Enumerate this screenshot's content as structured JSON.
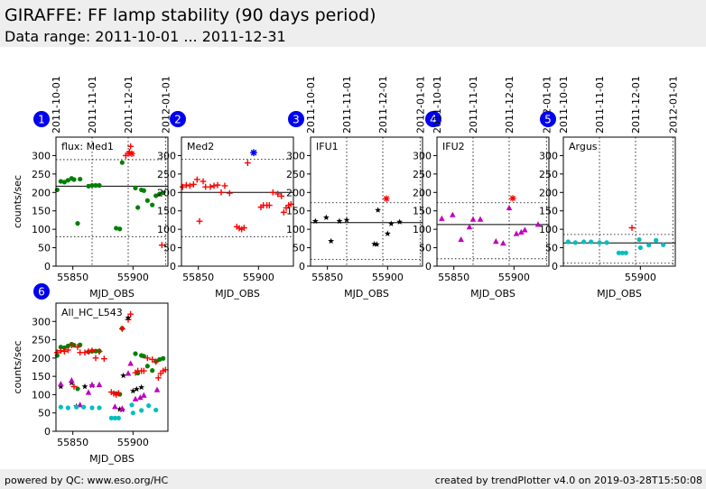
{
  "header": {
    "title": "GIRAFFE: FF lamp stability (90 days period)",
    "subtitle": "Data range: 2011-10-01 ... 2011-12-31"
  },
  "footer": {
    "left": "powered by QC: www.eso.org/HC",
    "right": "created by trendPlotter v4.0 on 2019-03-28T15:50:08"
  },
  "chart_data": [
    {
      "type": "scatter",
      "panel_number": "1",
      "title": "flux: Med1",
      "xlabel": "MJD_OBS",
      "ylabel": "counts/sec",
      "xlim": [
        55836,
        55929
      ],
      "ylim": [
        0,
        350
      ],
      "xticks": [
        55850,
        55900
      ],
      "yticks": [
        0,
        50,
        100,
        150,
        200,
        250,
        300
      ],
      "date_marks": [
        {
          "label": "2011-10-01",
          "x": 55835
        },
        {
          "label": "2011-11-01",
          "x": 55866
        },
        {
          "label": "2011-12-01",
          "x": 55896
        },
        {
          "label": "2012-01-01",
          "x": 55927
        }
      ],
      "mean": 217,
      "band": [
        80,
        289
      ],
      "series": [
        {
          "marker": "circle",
          "color": "#008000",
          "x": [
            55837,
            55840,
            55843,
            55846,
            55849,
            55851,
            55854,
            55856,
            55863,
            55866,
            55869,
            55872,
            55886,
            55889,
            55891,
            55902,
            55904,
            55907,
            55909,
            55912,
            55916,
            55919,
            55922,
            55925
          ],
          "y": [
            207,
            230,
            228,
            233,
            238,
            235,
            116,
            236,
            217,
            219,
            219,
            219,
            103,
            101,
            281,
            212,
            159,
            207,
            205,
            178,
            166,
            191,
            196,
            199
          ]
        },
        {
          "marker": "plus",
          "color": "#ff0000",
          "x": [
            55894,
            55896,
            55897,
            55898,
            55924
          ],
          "y": [
            300,
            305,
            310,
            325,
            57
          ]
        },
        {
          "marker": "cross",
          "color": "#ff0000",
          "x": [
            55899
          ],
          "y": [
            305
          ]
        }
      ]
    },
    {
      "type": "scatter",
      "panel_number": "2",
      "title": "Med2",
      "xlabel": "MJD_OBS",
      "ylabel": "",
      "xlim": [
        55836,
        55929
      ],
      "ylim": [
        0,
        350
      ],
      "xticks": [
        55850,
        55900
      ],
      "yticks": [
        0,
        50,
        100,
        150,
        200,
        250,
        300
      ],
      "date_marks": [],
      "mean": 200,
      "band": [
        80,
        290
      ],
      "series": [
        {
          "marker": "plus",
          "color": "#ff0000",
          "x": [
            55837,
            55840,
            55843,
            55846,
            55849,
            55851,
            55854,
            55856,
            55860,
            55863,
            55866,
            55869,
            55872,
            55876,
            55882,
            55884,
            55886,
            55888,
            55891,
            55902,
            55904,
            55907,
            55909,
            55912,
            55916,
            55919,
            55921,
            55923,
            55925,
            55927
          ],
          "y": [
            215,
            220,
            218,
            222,
            235,
            122,
            230,
            215,
            215,
            218,
            220,
            200,
            218,
            198,
            107,
            103,
            100,
            104,
            280,
            160,
            165,
            165,
            165,
            200,
            196,
            190,
            146,
            158,
            165,
            168
          ]
        },
        {
          "marker": "asterisk",
          "color": "#0000ff",
          "x": [
            55896
          ],
          "y": [
            308
          ]
        }
      ]
    },
    {
      "type": "scatter",
      "panel_number": "3",
      "title": "IFU1",
      "xlabel": "MJD_OBS",
      "ylabel": "",
      "xlim": [
        55836,
        55929
      ],
      "ylim": [
        0,
        350
      ],
      "xticks": [
        55850,
        55900
      ],
      "yticks": [
        0,
        50,
        100,
        150,
        200,
        250,
        300
      ],
      "date_marks": [
        {
          "label": "2011-10-01",
          "x": 55835
        },
        {
          "label": "2011-11-01",
          "x": 55866
        },
        {
          "label": "2011-12-01",
          "x": 55896
        },
        {
          "label": "2012-01-01",
          "x": 55927
        }
      ],
      "mean": 118,
      "band": [
        18,
        172
      ],
      "series": [
        {
          "marker": "star",
          "color": "#000000",
          "x": [
            55840,
            55849,
            55853,
            55860,
            55866,
            55889,
            55891,
            55892,
            55900,
            55903,
            55910
          ],
          "y": [
            122,
            132,
            68,
            122,
            125,
            60,
            59,
            152,
            88,
            115,
            120
          ]
        },
        {
          "marker": "cross",
          "color": "#ff0000",
          "x": [
            55899
          ],
          "y": [
            183
          ]
        }
      ]
    },
    {
      "type": "scatter",
      "panel_number": "4",
      "title": "IFU2",
      "xlabel": "MJD_OBS",
      "ylabel": "",
      "xlim": [
        55836,
        55929
      ],
      "ylim": [
        0,
        350
      ],
      "xticks": [
        55850,
        55900
      ],
      "yticks": [
        0,
        50,
        100,
        150,
        200,
        250,
        300
      ],
      "date_marks": [
        {
          "label": "2011-10-01",
          "x": 55835
        },
        {
          "label": "2011-11-01",
          "x": 55866
        },
        {
          "label": "2011-12-01",
          "x": 55896
        },
        {
          "label": "2012-01-01",
          "x": 55927
        }
      ],
      "mean": 113,
      "band": [
        20,
        172
      ],
      "series": [
        {
          "marker": "triangle",
          "color": "#bf00bf",
          "x": [
            55840,
            55849,
            55856,
            55863,
            55866,
            55872,
            55885,
            55891,
            55896,
            55902,
            55906,
            55909,
            55920
          ],
          "y": [
            129,
            139,
            72,
            106,
            127,
            127,
            67,
            62,
            158,
            88,
            92,
            98,
            113
          ]
        },
        {
          "marker": "cross",
          "color": "#ff0000",
          "x": [
            55899
          ],
          "y": [
            184
          ]
        }
      ]
    },
    {
      "type": "scatter",
      "panel_number": "5",
      "title": "Argus",
      "xlabel": "MJD_OBS",
      "ylabel": "",
      "xlim": [
        55836,
        55929
      ],
      "ylim": [
        0,
        350
      ],
      "xticks": [
        55900
      ],
      "yticks": [
        0,
        50,
        100,
        150,
        200,
        250,
        300
      ],
      "date_marks": [
        {
          "label": "2011-10-01",
          "x": 55835
        },
        {
          "label": "2011-11-01",
          "x": 55866
        },
        {
          "label": "2011-12-01",
          "x": 55896
        },
        {
          "label": "2012-01-01",
          "x": 55927
        }
      ],
      "mean": 63,
      "band": [
        8,
        86
      ],
      "series": [
        {
          "marker": "circle",
          "color": "#00bfbf",
          "x": [
            55840,
            55846,
            55853,
            55859,
            55866,
            55872,
            55882,
            55885,
            55888,
            55899,
            55900,
            55907,
            55913,
            55919
          ],
          "y": [
            66,
            64,
            66,
            66,
            64,
            64,
            36,
            36,
            36,
            72,
            50,
            57,
            70,
            58
          ]
        },
        {
          "marker": "plus",
          "color": "#ff0000",
          "x": [
            55893
          ],
          "y": [
            104
          ]
        }
      ]
    },
    {
      "type": "scatter",
      "panel_number": "6",
      "title": "All_HC_L543",
      "xlabel": "MJD_OBS",
      "ylabel": "counts/sec",
      "xlim": [
        55836,
        55929
      ],
      "ylim": [
        0,
        350
      ],
      "xticks": [
        55850,
        55900
      ],
      "yticks": [
        0,
        50,
        100,
        150,
        200,
        250,
        300
      ],
      "date_marks": [],
      "mean": null,
      "band": null,
      "series": [
        {
          "marker": "circle",
          "color": "#008000",
          "x": [
            55837,
            55840,
            55843,
            55846,
            55849,
            55851,
            55854,
            55856,
            55863,
            55866,
            55869,
            55872,
            55886,
            55889,
            55891,
            55902,
            55904,
            55907,
            55909,
            55912,
            55916,
            55919,
            55922,
            55925
          ],
          "y": [
            207,
            230,
            228,
            233,
            238,
            235,
            116,
            236,
            217,
            219,
            219,
            219,
            103,
            101,
            281,
            212,
            159,
            207,
            205,
            178,
            166,
            191,
            196,
            199
          ]
        },
        {
          "marker": "plus",
          "color": "#ff0000",
          "x": [
            55837,
            55840,
            55843,
            55846,
            55849,
            55851,
            55854,
            55856,
            55860,
            55863,
            55866,
            55869,
            55872,
            55876,
            55882,
            55884,
            55886,
            55888,
            55891,
            55896,
            55898,
            55902,
            55904,
            55907,
            55909,
            55912,
            55916,
            55919,
            55921,
            55923,
            55925,
            55927
          ],
          "y": [
            215,
            220,
            218,
            222,
            235,
            122,
            230,
            215,
            215,
            218,
            220,
            200,
            218,
            198,
            107,
            103,
            100,
            104,
            280,
            305,
            320,
            160,
            165,
            165,
            165,
            200,
            196,
            190,
            146,
            158,
            165,
            168
          ]
        },
        {
          "marker": "star",
          "color": "#000000",
          "x": [
            55840,
            55849,
            55853,
            55860,
            55866,
            55889,
            55891,
            55892,
            55896,
            55900,
            55903,
            55907
          ],
          "y": [
            122,
            132,
            68,
            122,
            125,
            60,
            59,
            152,
            310,
            110,
            115,
            120
          ]
        },
        {
          "marker": "triangle",
          "color": "#bf00bf",
          "x": [
            55840,
            55849,
            55856,
            55863,
            55866,
            55872,
            55885,
            55891,
            55896,
            55898,
            55902,
            55906,
            55909,
            55920
          ],
          "y": [
            129,
            139,
            72,
            106,
            127,
            127,
            67,
            62,
            158,
            185,
            88,
            92,
            98,
            113
          ]
        },
        {
          "marker": "circle",
          "color": "#00bfbf",
          "x": [
            55840,
            55846,
            55853,
            55859,
            55866,
            55872,
            55882,
            55885,
            55888,
            55899,
            55900,
            55907,
            55913,
            55919
          ],
          "y": [
            66,
            64,
            66,
            66,
            64,
            64,
            36,
            36,
            36,
            72,
            50,
            57,
            70,
            58
          ]
        }
      ]
    }
  ]
}
